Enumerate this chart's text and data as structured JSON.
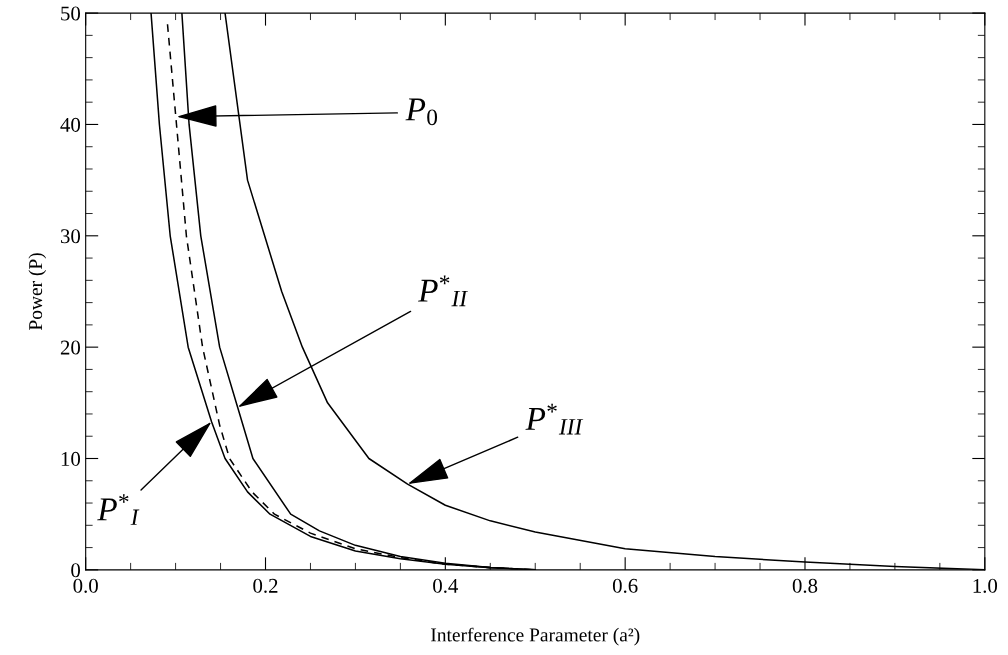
{
  "chart_data": {
    "type": "line",
    "xlabel": "Interference Parameter (a²)",
    "ylabel": "Power (P)",
    "xlim": [
      0,
      1
    ],
    "xticks": [
      {
        "value": 0,
        "label": "0.0"
      },
      0.2,
      0.4,
      0.6,
      0.8,
      {
        "value": 1,
        "label": "1.0"
      }
    ],
    "ylim": [
      0,
      50
    ],
    "yticks": [
      0,
      10,
      20,
      30,
      40,
      50
    ],
    "marker": "none",
    "series": [
      {
        "color": "#000000",
        "line_style": "solid",
        "x": [
          0.0727,
          0.082,
          0.094,
          0.114,
          0.14,
          0.155,
          0.18,
          0.205,
          0.25,
          0.3,
          0.35,
          0.4,
          0.45,
          0.5
        ],
        "values": [
          50,
          40,
          30,
          20,
          13.3,
          10,
          7,
          5,
          3,
          1.7,
          1,
          0.5,
          0.2,
          0
        ]
      },
      {
        "color": "#000000",
        "line_style": "dashed",
        "x": [
          0.091,
          0.101,
          0.112,
          0.13,
          0.149,
          0.16,
          0.185,
          0.21,
          0.25,
          0.3,
          0.35,
          0.4,
          0.45,
          0.5
        ],
        "values": [
          49,
          40,
          30,
          20,
          13,
          10,
          7,
          5,
          3.3,
          1.9,
          1.1,
          0.5,
          0.2,
          0
        ]
      },
      {
        "color": "#000000",
        "line_style": "solid",
        "x": [
          0.107,
          0.115,
          0.128,
          0.149,
          0.169,
          0.186,
          0.228,
          0.26,
          0.3,
          0.35,
          0.4,
          0.45,
          0.5
        ],
        "values": [
          50,
          40,
          30,
          20,
          14.6,
          10,
          5,
          3.5,
          2.2,
          1.2,
          0.6,
          0.2,
          0
        ]
      },
      {
        "color": "#000000",
        "line_style": "solid",
        "x": [
          0.155,
          0.18,
          0.199,
          0.218,
          0.241,
          0.269,
          0.315,
          0.358,
          0.4,
          0.45,
          0.5,
          0.6,
          0.7,
          0.8,
          0.9,
          1.0
        ],
        "values": [
          50,
          35,
          30,
          25,
          20,
          15,
          10,
          7.7,
          5.8,
          4.4,
          3.4,
          1.9,
          1.2,
          0.7,
          0.3,
          0
        ]
      }
    ],
    "annotations": [
      {
        "text": "P$_{0}$",
        "x": 0.101,
        "y": 40.7
      },
      {
        "text": "P$^{*}$$_{II}$",
        "x": 0.169,
        "y": 14.6
      },
      {
        "text": "P$^{*}$$_{I}$",
        "x": 0.14,
        "y": 13.3
      },
      {
        "text": "P$^{*}$$_{III}$",
        "x": 0.358,
        "y": 7.7
      }
    ]
  }
}
